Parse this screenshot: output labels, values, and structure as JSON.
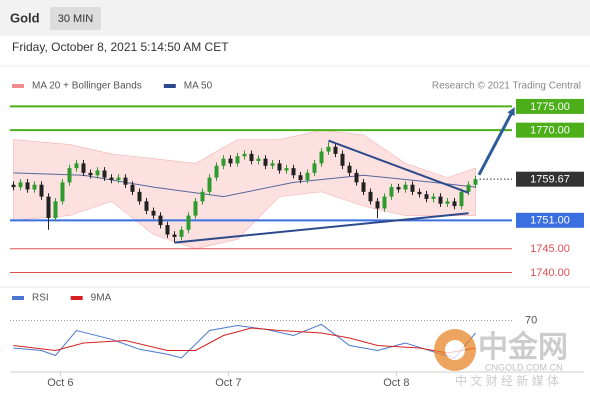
{
  "header": {
    "title": "Gold",
    "interval": "30 MIN",
    "timestamp": "Friday, October 8, 2021 5:14:50 AM CET"
  },
  "watermark": {
    "brand": "中金网",
    "site": "CNGOLD.COM.CN",
    "tagline": "中 文 财 经 新 媒 体"
  },
  "chart_data": [
    {
      "type": "candlestick",
      "source": "Research © 2021 Trading Central",
      "xlim": [
        -0.5,
        81.5
      ],
      "ylim": [
        1738,
        1789
      ],
      "up_color": "#2e9b2e",
      "down_color": "#222222",
      "open": [
        1758.5,
        1758,
        1759,
        1757.5,
        1758.5,
        1756,
        1751.5,
        1755,
        1759,
        1762,
        1763,
        1761,
        1760.5,
        1761.5,
        1760,
        1759.5,
        1760,
        1758.5,
        1757,
        1755,
        1753,
        1752,
        1750,
        1748,
        1747.5,
        1749,
        1752,
        1755,
        1757,
        1760,
        1762.5,
        1764,
        1763,
        1764.5,
        1765,
        1763.5,
        1764,
        1762.5,
        1763,
        1761.5,
        1762,
        1760.5,
        1759.5,
        1761,
        1763,
        1765.5,
        1766.5,
        1765,
        1762.5,
        1761,
        1759,
        1757,
        1755,
        1753.5,
        1756,
        1758,
        1757.5,
        1758.5,
        1757,
        1756.5,
        1755.5,
        1756,
        1754.5,
        1755,
        1754,
        1757,
        1758.5
      ],
      "high": [
        1759.2,
        1759.7,
        1759.7,
        1759.2,
        1759.2,
        1756.7,
        1755.7,
        1759.7,
        1762.7,
        1763.7,
        1763.7,
        1761.7,
        1762.2,
        1762.2,
        1760.7,
        1760.7,
        1760.7,
        1759.2,
        1757.7,
        1755.7,
        1753.7,
        1752.7,
        1750.7,
        1748.7,
        1749.7,
        1752.7,
        1755.7,
        1757.7,
        1760.7,
        1763.2,
        1764.7,
        1764.7,
        1765.2,
        1765.7,
        1765.7,
        1764.7,
        1764.7,
        1763.7,
        1763.7,
        1762.7,
        1762.7,
        1761.2,
        1761.7,
        1763.7,
        1766.2,
        1767.5,
        1767.2,
        1765.7,
        1763.2,
        1761.7,
        1759.7,
        1757.7,
        1755.7,
        1756.7,
        1758.7,
        1758.7,
        1759.2,
        1759.2,
        1757.7,
        1757.2,
        1756.7,
        1756.7,
        1755.7,
        1755.7,
        1757.7,
        1759.2,
        1760.4
      ],
      "low": [
        1757.3,
        1757.3,
        1756.8,
        1756.8,
        1755.3,
        1749,
        1750.8,
        1754.3,
        1758.3,
        1761.3,
        1760.3,
        1759.8,
        1759.8,
        1759.3,
        1758.8,
        1758.8,
        1757.8,
        1756.3,
        1754.3,
        1752.3,
        1751.3,
        1749.3,
        1747.3,
        1746.3,
        1746.8,
        1748.3,
        1751.3,
        1754.3,
        1756.3,
        1759.3,
        1761.8,
        1762.3,
        1762.3,
        1763.8,
        1762.8,
        1762.8,
        1761.8,
        1761.8,
        1760.8,
        1760.8,
        1759.8,
        1758.8,
        1758.8,
        1760.3,
        1762.3,
        1764.8,
        1764.3,
        1761.8,
        1760.3,
        1758.3,
        1756.3,
        1754.3,
        1751.5,
        1752.8,
        1755.3,
        1756.8,
        1756.8,
        1756.3,
        1755.8,
        1754.8,
        1754.8,
        1753.8,
        1753.8,
        1753.3,
        1753.3,
        1756.3,
        1757.8
      ],
      "close": [
        1758,
        1759,
        1757.5,
        1758.5,
        1756,
        1751.5,
        1755,
        1759,
        1762,
        1763,
        1761,
        1760.5,
        1761.5,
        1760,
        1759.5,
        1760,
        1758.5,
        1757,
        1755,
        1753,
        1752,
        1750,
        1748,
        1747.5,
        1749,
        1752,
        1755,
        1757,
        1760,
        1762.5,
        1764,
        1763,
        1764.5,
        1765,
        1763.5,
        1764,
        1762.5,
        1763,
        1761.5,
        1762,
        1760.5,
        1759.5,
        1761,
        1763,
        1765.5,
        1766.5,
        1765,
        1762.5,
        1761,
        1759,
        1757,
        1755,
        1753.5,
        1756,
        1758,
        1757.5,
        1758.5,
        1757,
        1756.5,
        1755.5,
        1756,
        1754.5,
        1755,
        1754,
        1757,
        1758.5,
        1759.67
      ],
      "series": [
        {
          "name": "MA 20 + Bollinger Bands",
          "color": "#f08c8c",
          "fill": "#fde0e0",
          "x": [
            0,
            8,
            14,
            20,
            26,
            32,
            38,
            44,
            50,
            56,
            62,
            66
          ],
          "upper": [
            1768,
            1767,
            1765,
            1764,
            1763,
            1768,
            1768,
            1770,
            1769,
            1763,
            1760,
            1762
          ],
          "lower": [
            1751,
            1752,
            1755,
            1748,
            1745,
            1747,
            1756,
            1757,
            1754,
            1752,
            1752,
            1752
          ]
        },
        {
          "name": "MA 50",
          "color": "#2d4a8a",
          "x": [
            0,
            10,
            20,
            30,
            40,
            50,
            60,
            66
          ],
          "values": [
            1761,
            1760.5,
            1758,
            1756,
            1759,
            1760.5,
            1759,
            1758
          ]
        }
      ],
      "levels": [
        {
          "value": 1775,
          "label": "1775.00",
          "color": "#4caf1a",
          "width": 2,
          "boxed": true,
          "dashed": false
        },
        {
          "value": 1770,
          "label": "1770.00",
          "color": "#4caf1a",
          "width": 2,
          "boxed": true,
          "dashed": false
        },
        {
          "value": 1759.67,
          "label": "1759.67",
          "color": "#333333",
          "width": 1,
          "boxed": true,
          "dashed": true
        },
        {
          "value": 1751,
          "label": "1751.00",
          "color": "#3a6fe0",
          "width": 2,
          "boxed": true,
          "dashed": false
        },
        {
          "value": 1745,
          "label": "1745.00",
          "color": "#e05050",
          "width": 1,
          "boxed": false,
          "dashed": false
        },
        {
          "value": 1740,
          "label": "1740.00",
          "color": "#e05050",
          "width": 1,
          "boxed": false,
          "dashed": false
        }
      ],
      "trendlines": [
        {
          "x": [
            45,
            65
          ],
          "values": [
            1767.8,
            1756.8
          ],
          "color": "#2d4a8a",
          "arrow": false
        },
        {
          "x": [
            23,
            65
          ],
          "values": [
            1746.3,
            1752.5
          ],
          "color": "#2d4a8a",
          "arrow": false
        },
        {
          "x": [
            66.5,
            71.4
          ],
          "values": [
            1760.6,
            1774.3
          ],
          "color": "#2d5a9a",
          "arrow": true
        }
      ]
    },
    {
      "type": "line",
      "xlim": [
        -0.5,
        81.5
      ],
      "ylim": [
        24,
        80
      ],
      "yticks": [
        70
      ],
      "xticks": [
        {
          "value": 6.7,
          "label": "Oct 6"
        },
        {
          "value": 30.7,
          "label": "Oct 7"
        },
        {
          "value": 54.7,
          "label": "Oct 8"
        }
      ],
      "series": [
        {
          "name": "RSI",
          "color": "#4a78d0",
          "x": [
            0,
            4,
            6,
            9,
            14,
            18,
            22,
            24,
            28,
            32,
            36,
            40,
            44,
            48,
            52,
            56,
            60,
            63,
            66
          ],
          "values": [
            48,
            46,
            42,
            62,
            55,
            47,
            43,
            40,
            62,
            66,
            63,
            58,
            67,
            50,
            46,
            52,
            45,
            40,
            60
          ]
        },
        {
          "name": "9MA",
          "color": "#d62020",
          "x": [
            0,
            6,
            10,
            16,
            22,
            26,
            30,
            34,
            38,
            44,
            48,
            52,
            58,
            62,
            66
          ],
          "values": [
            50,
            46,
            52,
            54,
            46,
            46,
            58,
            64,
            62,
            60,
            56,
            50,
            48,
            44,
            48
          ]
        }
      ]
    }
  ]
}
